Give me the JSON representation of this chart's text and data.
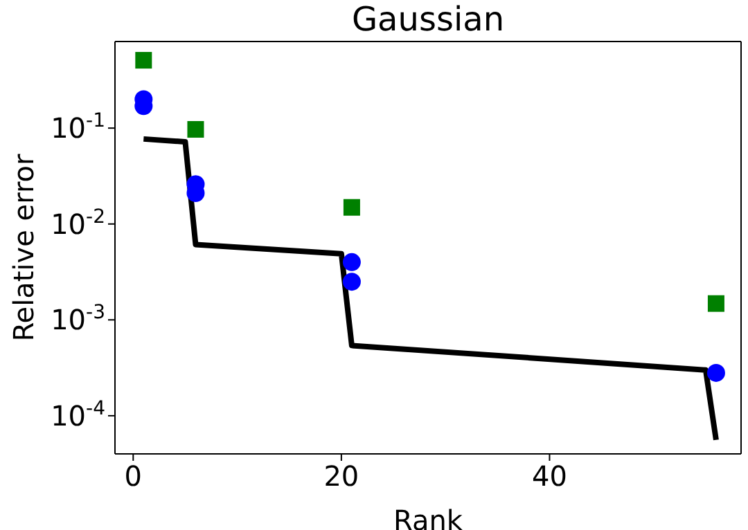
{
  "chart_data": {
    "type": "scatter",
    "title": "Gaussian",
    "xlabel": "Rank",
    "ylabel": "Relative error",
    "log": "y",
    "xlim": [
      -1.75,
      58.4
    ],
    "xticks": [
      0,
      20,
      40
    ],
    "ylim": [
      4e-05,
      0.8
    ],
    "yticks": [
      {
        "value": 0.0001,
        "label": "10$^{-4}$"
      },
      {
        "value": 0.001,
        "label": "10$^{-3}$"
      },
      {
        "value": 0.01,
        "label": "10$^{-2}$"
      },
      {
        "value": 0.1,
        "label": "10$^{-1}$"
      }
    ],
    "series": [
      {
        "type": "line",
        "color": "#000000",
        "marker": "none",
        "line_style": "solid",
        "x": [
          1,
          5,
          6,
          20,
          21,
          55,
          56
        ],
        "values": [
          0.077,
          0.072,
          0.0061,
          0.0049,
          0.00054,
          0.0003,
          5.6e-05
        ]
      },
      {
        "color": "#008000",
        "marker": "square",
        "x": [
          1,
          6,
          21,
          56
        ],
        "values": [
          0.51,
          0.097,
          0.0149,
          0.00148
        ]
      },
      {
        "color": "#0000ff",
        "marker": "circle",
        "x": [
          1,
          1,
          6,
          6,
          21,
          21,
          56
        ],
        "values": [
          0.2,
          0.17,
          0.026,
          0.021,
          0.004,
          0.0025,
          0.00028
        ]
      }
    ]
  }
}
